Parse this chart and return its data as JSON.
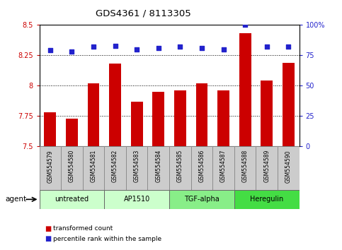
{
  "title": "GDS4361 / 8113305",
  "samples": [
    "GSM554579",
    "GSM554580",
    "GSM554581",
    "GSM554582",
    "GSM554583",
    "GSM554584",
    "GSM554585",
    "GSM554586",
    "GSM554587",
    "GSM554588",
    "GSM554589",
    "GSM554590"
  ],
  "bar_values": [
    7.78,
    7.73,
    8.02,
    8.18,
    7.87,
    7.95,
    7.96,
    8.02,
    7.96,
    8.43,
    8.04,
    8.19
  ],
  "percentile_values": [
    79,
    78,
    82,
    83,
    80,
    81,
    82,
    81,
    80,
    100,
    82,
    82
  ],
  "bar_color": "#cc0000",
  "percentile_color": "#2222cc",
  "ylim_left": [
    7.5,
    8.5
  ],
  "ylim_right": [
    0,
    100
  ],
  "yticks_left": [
    7.5,
    7.75,
    8.0,
    8.25,
    8.5
  ],
  "yticks_right": [
    0,
    25,
    50,
    75,
    100
  ],
  "ytick_labels_left": [
    "7.5",
    "7.75",
    "8",
    "8.25",
    "8.5"
  ],
  "ytick_labels_right": [
    "0",
    "25",
    "50",
    "75",
    "100%"
  ],
  "grid_lines": [
    7.75,
    8.0,
    8.25
  ],
  "groups": [
    {
      "label": "untreated",
      "start": 0,
      "end": 3,
      "color": "#ccffcc"
    },
    {
      "label": "AP1510",
      "start": 3,
      "end": 6,
      "color": "#ccffcc"
    },
    {
      "label": "TGF-alpha",
      "start": 6,
      "end": 9,
      "color": "#88ee88"
    },
    {
      "label": "Heregulin",
      "start": 9,
      "end": 12,
      "color": "#44dd44"
    }
  ],
  "legend_items": [
    {
      "label": "transformed count",
      "color": "#cc0000"
    },
    {
      "label": "percentile rank within the sample",
      "color": "#2222cc"
    }
  ],
  "agent_label": "agent",
  "bg_color": "#ffffff",
  "tick_color_left": "#cc0000",
  "tick_color_right": "#2222cc",
  "sample_box_color": "#cccccc",
  "sample_box_edge": "#888888"
}
